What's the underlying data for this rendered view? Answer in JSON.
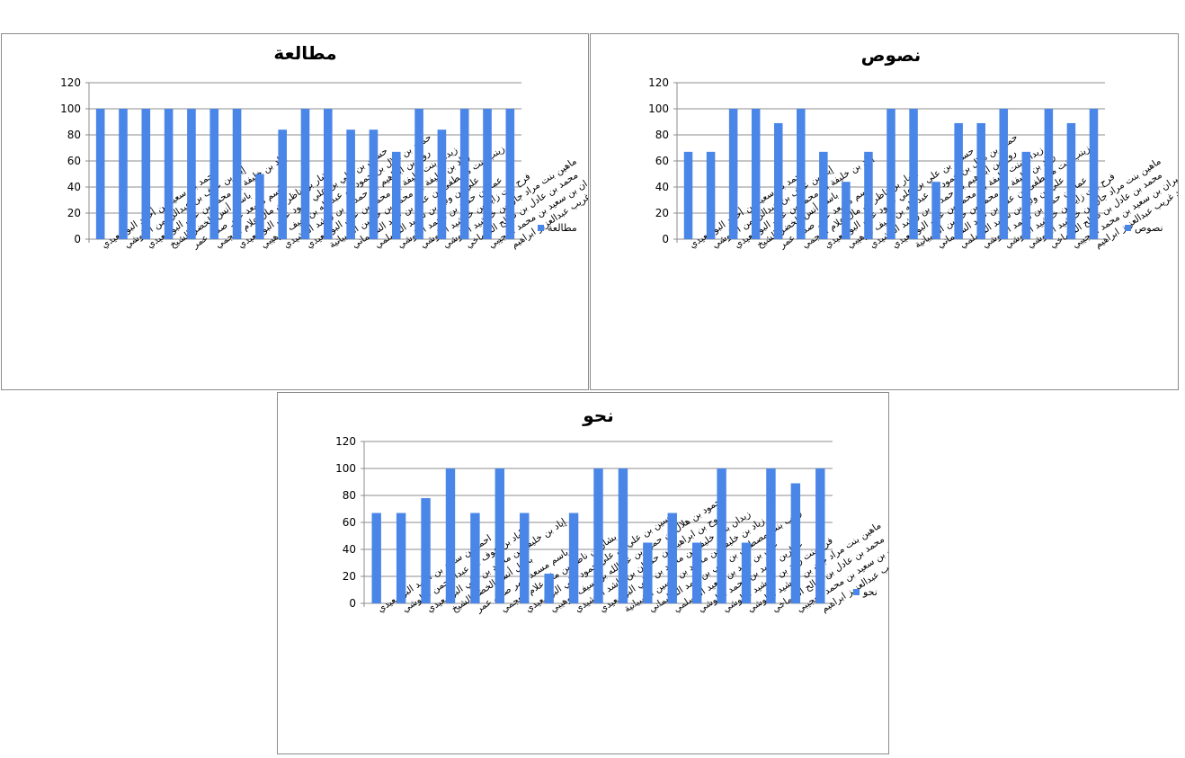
{
  "colors": {
    "bar": "#4a86e8",
    "grid": "#8c8c8c",
    "axis": "#8c8c8c"
  },
  "chart_data": [
    {
      "type": "bar",
      "title": "مطالعة",
      "ylim": [
        0,
        120
      ],
      "yticks": [
        0,
        20,
        40,
        60,
        80,
        100,
        120
      ],
      "grid": true,
      "legend_position": "right",
      "categories": [
        "احمد بن سعيد بن أحمد البوسعيدي",
        "إياد بن عوف بن عبدالرحمن البلوشي",
        "إياد بن خليفة بن محمد بن علي البوسعيدي",
        "باسل أنس الخضر الشيخ",
        "باسم مسعد عمر صدق عمر",
        "بشار بن ناظر بن مال علام العجمي",
        "حسين بن علي بن علي حمود علي البوسعيدي",
        "حمود بن هلال بن حمود بن عبدالله بن سيف الوهيبي",
        "روح بن ابراهيم بن حمدان بن راشد الرشيدي",
        "زيدان بنت خليفة بن محمد بن علي البوسعيدي",
        "زياد بن خليفة بن محمد بن حسين الشبيانية",
        "زينب بنت مصطفى بن علي بن حمد السليماني",
        "علي بن وليد بن سعيد المسلمي",
        "عمارين حميد بن محمد البلوشي",
        "فرح بنت زايد بن خرشيد البلوشي",
        "ماهين بنت مراد جان بن خرشيد البلوشي",
        "محمد بن عادل بن صالح الشماخي",
        "ميران بن سعيد بن محمد العجيبي",
        "هنا أحمد غريب عبدالعزيز ابراهيم"
      ],
      "series": [
        {
          "name": "مطالعة",
          "values": [
            100,
            100,
            100,
            100,
            100,
            100,
            100,
            50,
            84,
            100,
            100,
            84,
            84,
            67,
            100,
            84,
            100,
            100,
            100
          ]
        }
      ]
    },
    {
      "type": "bar",
      "title": "نصوص",
      "ylim": [
        0,
        120
      ],
      "yticks": [
        0,
        20,
        40,
        60,
        80,
        100,
        120
      ],
      "grid": true,
      "legend_position": "right",
      "categories": [
        "احمد بن سعيد بن أحمد البوسعيدي",
        "إياد بن عوف بن عبدالرحمن البلوشي",
        "إياد بن خليفة بن محمد بن علي البوسعيدي",
        "باسل أنس الخضر الشيخ",
        "باسم مسعد عمر صدق عمر",
        "بشار بن ناظر بن مال علام العجمي",
        "حسين بن علي بن علي حمود علي البوسعيدي",
        "حمود بن هلال بن حمود بن عبدالله بن سيف الوهيبي",
        "روح بن ابراهيم بن حمدان بن راشد الرشيدي",
        "زيدان بنت خليفة بن محمد بن علي البوسعيدي",
        "زياد بن خليفة بن محمد بن حسين الشبيانية",
        "زينب بنت مصطفى بن علي بن حمد السليماني",
        "علي بن وليد بن سعيد المسلمي",
        "عمارين حميد بن محمد البلوشي",
        "فرح بنت زايد بن خرشيد البلوشي",
        "ماهين بنت مراد جان بن خرشيد البلوشي",
        "محمد بن عادل بن صالح الشماخي",
        "ميران بن سعيد بن محمد العجيبي",
        "هنا أحمد غريب عبدالعزيز ابراهيم"
      ],
      "series": [
        {
          "name": "نصوص",
          "values": [
            67,
            67,
            100,
            100,
            89,
            100,
            67,
            44,
            67,
            100,
            100,
            44,
            89,
            89,
            100,
            67,
            100,
            89,
            100
          ]
        }
      ]
    },
    {
      "type": "bar",
      "title": "نحو",
      "ylim": [
        0,
        120
      ],
      "yticks": [
        0,
        20,
        40,
        60,
        80,
        100,
        120
      ],
      "grid": true,
      "legend_position": "right",
      "categories": [
        "احمد بن سعيد بن أحمد البوسعيدي",
        "إياد بن عوف بن عبدالرحمن البلوشي",
        "إياد بن خليفة بن محمد بن علي البوسعيدي",
        "باسل أنس الخضر الشيخ",
        "باسم مسعد عمر صدق عمر",
        "بشار بن ناظر بن مال علام العجمي",
        "حسين بن علي بن علي حمود علي البوسعيدي",
        "حمود بن هلال بن حمود بن عبدالله بن سيف الوهيبي",
        "روح بن ابراهيم بن حمدان بن راشد الرشيدي",
        "زيدان بنت خليفة بن محمد بن علي البوسعيدي",
        "زياد بن خليفة بن محمد بن حسين الشبيانية",
        "زينب بنت مصطفى بن علي بن حمد السليماني",
        "علي بن وليد بن سعيد المسلمي",
        "عمارين حميد بن محمد البلوشي",
        "فرح بنت زايد بن خرشيد البلوشي",
        "ماهين بنت مراد جان بن خرشيد البلوشي",
        "محمد بن عادل بن صالح الشماخي",
        "ميران بن سعيد بن محمد العجيبي",
        "هنا أحمد غريب عبدالعزيز ابراهيم"
      ],
      "series": [
        {
          "name": "نحو",
          "values": [
            67,
            67,
            78,
            100,
            67,
            100,
            67,
            22,
            67,
            100,
            100,
            45,
            67,
            45,
            100,
            45,
            100,
            89,
            100
          ]
        }
      ]
    }
  ]
}
